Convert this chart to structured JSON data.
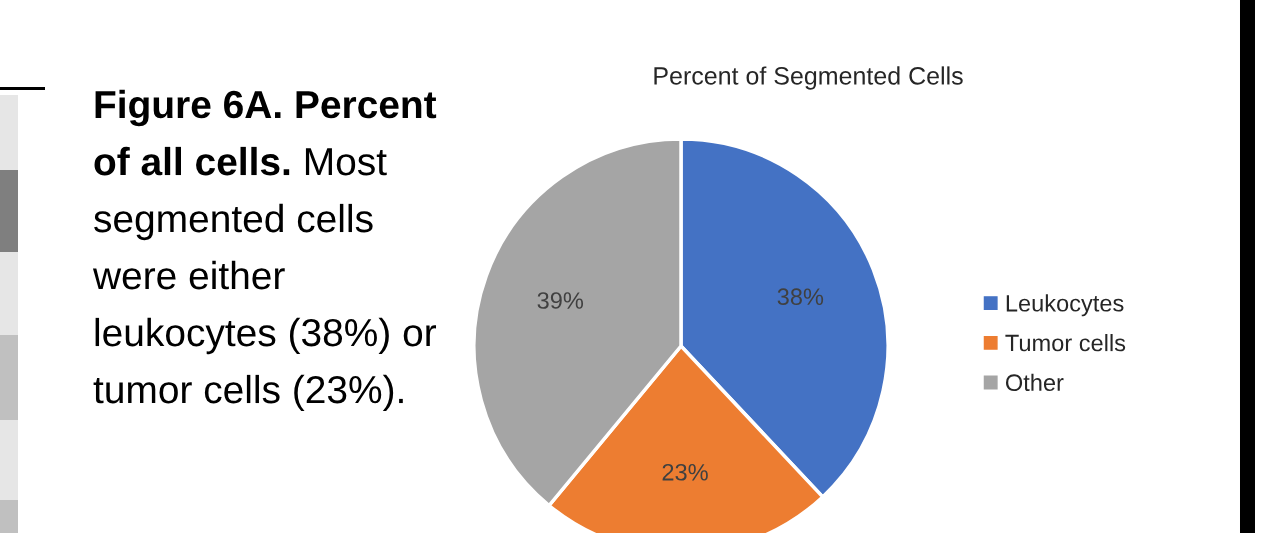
{
  "chart_data": {
    "type": "pie",
    "title": "Percent of Segmented Cells",
    "categories": [
      "Leukocytes",
      "Tumor cells",
      "Other"
    ],
    "values": [
      38,
      23,
      39
    ],
    "colors": [
      "#4472c4",
      "#ed7d31",
      "#a5a5a5"
    ],
    "value_labels": [
      "38%",
      "23%",
      "39%"
    ],
    "legend": "right",
    "annotations": [
      "Figure 6A. Percent of all cells.",
      "Most segmented cells were either leukocytes (38%) or tumor cells (23%)."
    ]
  }
}
